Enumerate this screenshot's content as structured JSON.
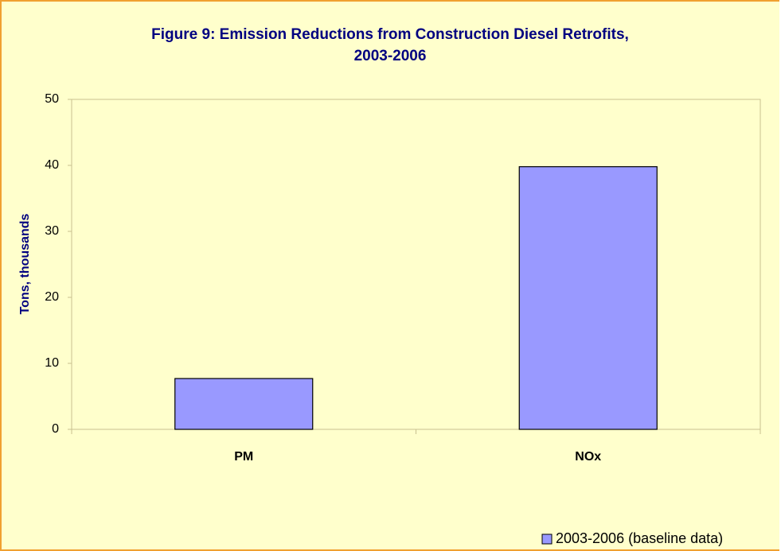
{
  "chart_data": {
    "type": "bar",
    "title": "Figure 9: Emission Reductions from Construction Diesel Retrofits, 2003-2006",
    "y_label": "Tons, thousands",
    "categories": [
      "PM",
      "NOx"
    ],
    "series": [
      {
        "name": "2003-2006 (baseline data)",
        "color": "#9999ff",
        "values": [
          7.7,
          39.8
        ]
      }
    ],
    "ylim": [
      0,
      50
    ],
    "yticks": [
      0,
      10,
      20,
      30,
      40,
      50
    ],
    "grid": false,
    "legend": "bottom-right"
  }
}
